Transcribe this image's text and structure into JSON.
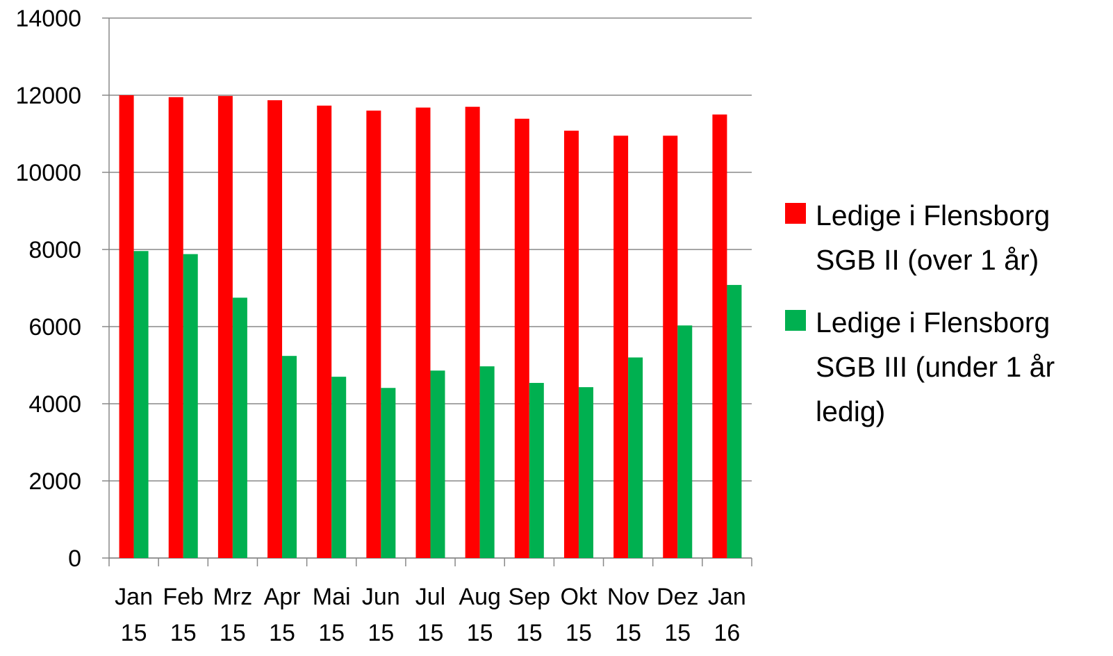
{
  "chart_data": {
    "type": "bar",
    "categories": [
      "Jan 15",
      "Feb 15",
      "Mrz 15",
      "Apr 15",
      "Mai 15",
      "Jun 15",
      "Jul 15",
      "Aug 15",
      "Sep 15",
      "Okt 15",
      "Nov 15",
      "Dez 15",
      "Jan 16"
    ],
    "series": [
      {
        "name": "Ledige i Flensborg SGB II (over 1 år)",
        "color": "#ff0000",
        "values": [
          12000,
          11950,
          11980,
          11870,
          11730,
          11600,
          11680,
          11700,
          11390,
          11080,
          10950,
          10950,
          11500
        ]
      },
      {
        "name": "Ledige i Flensborg SGB III (under 1 år ledig)",
        "color": "#00b050",
        "values": [
          7960,
          7880,
          6750,
          5240,
          4700,
          4410,
          4860,
          4970,
          4540,
          4430,
          5200,
          6030,
          7080
        ]
      }
    ],
    "ylim": [
      0,
      14000
    ],
    "yticks": [
      0,
      2000,
      4000,
      6000,
      8000,
      10000,
      12000,
      14000
    ],
    "grid": true,
    "legend": "right"
  }
}
